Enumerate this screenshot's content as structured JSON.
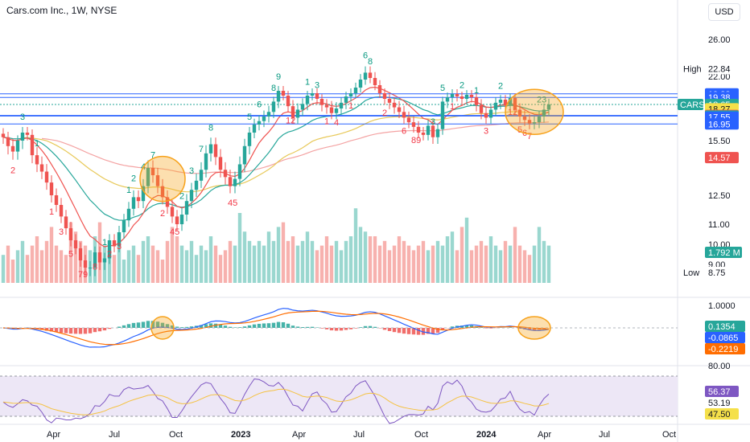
{
  "header": {
    "title": "Cars.com Inc., 1W, NYSE",
    "currency": "USD"
  },
  "colors": {
    "up": "#26a69a",
    "down": "#ef5350",
    "ema_fast": "#ef5350",
    "ema_mid": "#26a69a",
    "ema_slow": "#e8c95a",
    "ema_long": "#f4a3a3",
    "hline": "#2962ff",
    "highlight": "#f7a21b",
    "macd": "#2962ff",
    "signal": "#ff6d00",
    "rsi": "#7e57c2",
    "rsi_ma": "#f5c242",
    "rsi_band": "#ede7f6",
    "td_up": "#089981",
    "td_down": "#f23645"
  },
  "price_pane": {
    "tick_labels": [
      "26.00",
      "22.00",
      "19.00",
      "15.50",
      "12.50",
      "11.00",
      "10.00",
      "9.00"
    ],
    "tick_values": [
      26,
      22,
      19,
      15.5,
      12.5,
      11,
      10,
      9
    ],
    "hlines": [
      19.82,
      19.38,
      17.7,
      17.64,
      16.95
    ],
    "badges": [
      {
        "label": "High",
        "value": "22.84",
        "price": 22.84,
        "kind": "plain"
      },
      {
        "label": "",
        "value": "19.82",
        "price": 19.82,
        "kind": "blue"
      },
      {
        "label": "",
        "value": "19.38",
        "price": 19.38,
        "kind": "blue"
      },
      {
        "label": "CARS",
        "value": "18.65",
        "price": 18.65,
        "kind": "teal"
      },
      {
        "label": "",
        "value": "18.27",
        "price": 18.27,
        "kind": "yellow"
      },
      {
        "label": "",
        "value": "17.70",
        "price": 17.7,
        "kind": "red"
      },
      {
        "label": "",
        "value": "17.64",
        "price": 17.64,
        "kind": "teal"
      },
      {
        "label": "",
        "value": "17.55",
        "price": 17.55,
        "kind": "blue"
      },
      {
        "label": "",
        "value": "16.95",
        "price": 16.95,
        "kind": "blue"
      },
      {
        "label": "",
        "value": "14.57",
        "price": 14.57,
        "kind": "red"
      },
      {
        "label": "",
        "value": "1.792 M",
        "price": 9.6,
        "kind": "teal"
      },
      {
        "label": "Low",
        "value": "8.75",
        "price": 8.75,
        "kind": "plain"
      }
    ]
  },
  "macd_pane": {
    "tick_labels": [
      "1.0000"
    ],
    "badges": [
      {
        "value": "0.1354",
        "kind": "teal"
      },
      {
        "value": "-0.0865",
        "kind": "blue"
      },
      {
        "value": "-0.2219",
        "kind": "orange"
      }
    ]
  },
  "rsi_pane": {
    "tick_labels": [
      "80.00"
    ],
    "badges": [
      {
        "value": "56.37",
        "kind": "purple"
      },
      {
        "value": "53.19",
        "kind": "plain"
      },
      {
        "value": "47.50",
        "kind": "yellow"
      }
    ]
  },
  "x_axis": {
    "labels": [
      "Apr",
      "Jul",
      "Oct",
      "2023",
      "Apr",
      "Jul",
      "Oct",
      "2024",
      "Apr",
      "Jul",
      "Oct"
    ],
    "bold": [
      false,
      false,
      false,
      true,
      false,
      false,
      false,
      true,
      false,
      false,
      false
    ]
  },
  "chart_data": {
    "type": "candlestick",
    "interval": "1W",
    "symbol": "CARS",
    "last_price": 18.65,
    "high": 22.84,
    "low": 8.75,
    "volume_last": "1.792 M",
    "closes": [
      15.8,
      15.2,
      14.9,
      15.5,
      16.2,
      16.0,
      14.7,
      14.2,
      13.8,
      13.2,
      12.5,
      12.0,
      11.4,
      10.8,
      10.2,
      9.8,
      9.2,
      8.9,
      8.9,
      9.6,
      9.1,
      9.3,
      10.2,
      9.9,
      10.6,
      11.2,
      11.8,
      12.4,
      12.2,
      13.0,
      14.0,
      13.6,
      13.0,
      12.4,
      11.9,
      11.4,
      11.0,
      11.5,
      12.2,
      12.8,
      13.3,
      13.9,
      14.8,
      15.3,
      14.6,
      13.9,
      13.5,
      13.0,
      13.4,
      14.2,
      15.2,
      16.2,
      16.9,
      17.2,
      17.6,
      18.0,
      18.9,
      20.2,
      19.6,
      18.5,
      17.5,
      18.2,
      18.7,
      19.6,
      19.9,
      19.2,
      18.6,
      18.4,
      17.9,
      18.3,
      18.8,
      19.5,
      19.9,
      20.6,
      21.6,
      22.4,
      21.8,
      20.9,
      19.9,
      19.2,
      18.8,
      18.4,
      18.0,
      17.5,
      17.1,
      16.7,
      16.2,
      16.0,
      16.8,
      15.8,
      16.5,
      18.9,
      19.4,
      19.8,
      19.5,
      19.2,
      19.7,
      19.4,
      18.6,
      17.9,
      17.5,
      18.2,
      18.8,
      19.1,
      18.6,
      19.3,
      18.2,
      17.6,
      17.3,
      17.0,
      17.1,
      17.6,
      18.2,
      18.65
    ],
    "volume": [
      0.6,
      0.8,
      0.5,
      0.7,
      0.9,
      0.6,
      0.8,
      1.0,
      0.7,
      0.9,
      1.2,
      0.8,
      0.7,
      0.6,
      1.3,
      1.1,
      0.9,
      0.8,
      0.7,
      1.0,
      1.3,
      0.8,
      0.7,
      0.6,
      0.9,
      0.5,
      0.7,
      0.8,
      0.6,
      0.9,
      1.0,
      0.8,
      0.7,
      0.5,
      0.9,
      1.2,
      1.0,
      0.8,
      0.7,
      0.9,
      0.6,
      0.8,
      0.7,
      1.0,
      0.8,
      0.6,
      0.7,
      0.9,
      0.8,
      1.5,
      1.1,
      0.9,
      0.8,
      0.9,
      0.8,
      1.1,
      0.9,
      1.2,
      1.3,
      0.9,
      1.0,
      0.8,
      0.9,
      1.1,
      0.9,
      0.7,
      0.8,
      1.0,
      0.8,
      0.9,
      0.7,
      0.9,
      1.0,
      1.6,
      1.2,
      1.1,
      1.0,
      1.0,
      0.8,
      0.9,
      0.7,
      0.8,
      1.0,
      0.9,
      0.8,
      0.7,
      0.8,
      0.9,
      0.7,
      0.8,
      0.9,
      0.8,
      1.0,
      1.1,
      0.7,
      1.2,
      1.4,
      0.7,
      0.8,
      0.9,
      0.8,
      1.0,
      0.8,
      0.7,
      0.9,
      0.8,
      1.2,
      0.8,
      0.7,
      0.6,
      0.8,
      1.2,
      0.9,
      0.8
    ],
    "td_counts": [
      {
        "i": 2,
        "label": "2",
        "dir": "down"
      },
      {
        "i": 4,
        "label": "3",
        "dir": "up"
      },
      {
        "i": 7,
        "label": "1",
        "dir": "up"
      },
      {
        "i": 10,
        "label": "1",
        "dir": "down"
      },
      {
        "i": 12,
        "label": "3",
        "dir": "down"
      },
      {
        "i": 14,
        "label": "5",
        "dir": "down"
      },
      {
        "i": 16,
        "label": "7",
        "dir": "down"
      },
      {
        "i": 17,
        "label": "9",
        "dir": "down"
      },
      {
        "i": 19,
        "label": "8",
        "dir": "down"
      },
      {
        "i": 21,
        "label": "1",
        "dir": "up"
      },
      {
        "i": 22,
        "label": "2",
        "dir": "down"
      },
      {
        "i": 24,
        "label": "3",
        "dir": "down"
      },
      {
        "i": 26,
        "label": "1",
        "dir": "up"
      },
      {
        "i": 27,
        "label": "2",
        "dir": "up"
      },
      {
        "i": 29,
        "label": "4",
        "dir": "up"
      },
      {
        "i": 31,
        "label": "7",
        "dir": "up"
      },
      {
        "i": 33,
        "label": "2",
        "dir": "down"
      },
      {
        "i": 35,
        "label": "45",
        "dir": "down"
      },
      {
        "i": 37,
        "label": "2",
        "dir": "up"
      },
      {
        "i": 39,
        "label": "3",
        "dir": "up"
      },
      {
        "i": 41,
        "label": "7",
        "dir": "up"
      },
      {
        "i": 43,
        "label": "8",
        "dir": "up"
      },
      {
        "i": 47,
        "label": "45",
        "dir": "down"
      },
      {
        "i": 51,
        "label": "5",
        "dir": "up"
      },
      {
        "i": 53,
        "label": "6",
        "dir": "up"
      },
      {
        "i": 56,
        "label": "8",
        "dir": "up"
      },
      {
        "i": 57,
        "label": "9",
        "dir": "up"
      },
      {
        "i": 59,
        "label": "12",
        "dir": "down"
      },
      {
        "i": 63,
        "label": "1",
        "dir": "up"
      },
      {
        "i": 65,
        "label": "3",
        "dir": "up"
      },
      {
        "i": 67,
        "label": "1",
        "dir": "down"
      },
      {
        "i": 69,
        "label": "4",
        "dir": "down"
      },
      {
        "i": 72,
        "label": "1",
        "dir": "down"
      },
      {
        "i": 75,
        "label": "6",
        "dir": "up"
      },
      {
        "i": 76,
        "label": "8",
        "dir": "up"
      },
      {
        "i": 79,
        "label": "2",
        "dir": "down"
      },
      {
        "i": 83,
        "label": "6",
        "dir": "down"
      },
      {
        "i": 85,
        "label": "89",
        "dir": "down"
      },
      {
        "i": 89,
        "label": "3",
        "dir": "up"
      },
      {
        "i": 91,
        "label": "5",
        "dir": "up"
      },
      {
        "i": 93,
        "label": "1",
        "dir": "down"
      },
      {
        "i": 95,
        "label": "2",
        "dir": "up"
      },
      {
        "i": 98,
        "label": "1",
        "dir": "up"
      },
      {
        "i": 100,
        "label": "3",
        "dir": "down"
      },
      {
        "i": 103,
        "label": "2",
        "dir": "up"
      },
      {
        "i": 105,
        "label": "12",
        "dir": "down"
      },
      {
        "i": 107,
        "label": "5",
        "dir": "down"
      },
      {
        "i": 108,
        "label": "6",
        "dir": "down"
      },
      {
        "i": 109,
        "label": "7",
        "dir": "down"
      },
      {
        "i": 111,
        "label": "23",
        "dir": "up"
      }
    ],
    "highlight_circles": [
      {
        "pane": "price",
        "i": 33,
        "price": 13.4
      },
      {
        "pane": "price",
        "i": 110,
        "price": 18.0
      },
      {
        "pane": "macd",
        "i": 33
      },
      {
        "pane": "macd",
        "i": 110
      }
    ],
    "macd": {
      "macd": -0.0865,
      "signal": -0.2219,
      "hist": 0.1354
    },
    "rsi": {
      "value": 56.37,
      "ma": 47.5,
      "level": 53.19
    }
  }
}
